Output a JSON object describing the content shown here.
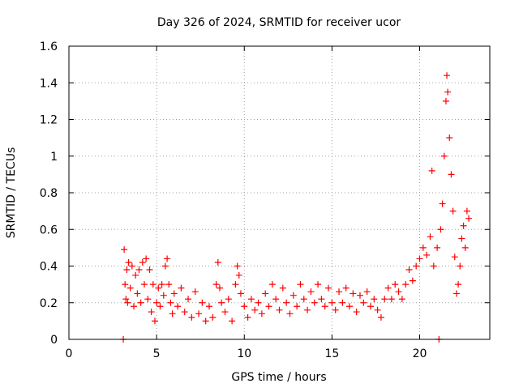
{
  "chart_data": {
    "type": "scatter",
    "title": "Day 326 of 2024, SRMTID for receiver ucor",
    "xlabel": "GPS time / hours",
    "ylabel": "SRMTID / TECUs",
    "xlim": [
      0,
      24
    ],
    "ylim": [
      0,
      1.6
    ],
    "xticks": [
      0,
      5,
      10,
      15,
      20
    ],
    "xtick_labels": [
      "0",
      "5",
      "10",
      "15",
      "20"
    ],
    "yticks": [
      0,
      0.2,
      0.4,
      0.6,
      0.8,
      1.0,
      1.2,
      1.4,
      1.6
    ],
    "ytick_labels": [
      "0",
      "0.2",
      "0.4",
      "0.6",
      "0.8",
      "1",
      "1.2",
      "1.4",
      "1.6"
    ],
    "grid": true,
    "marker": "+",
    "color": "#ff0000",
    "series": [
      {
        "name": "SRMTID",
        "points": [
          [
            3.1,
            0.0
          ],
          [
            3.15,
            0.49
          ],
          [
            3.2,
            0.3
          ],
          [
            3.25,
            0.22
          ],
          [
            3.3,
            0.38
          ],
          [
            3.35,
            0.2
          ],
          [
            3.4,
            0.42
          ],
          [
            3.5,
            0.28
          ],
          [
            3.6,
            0.4
          ],
          [
            3.7,
            0.18
          ],
          [
            3.8,
            0.35
          ],
          [
            3.9,
            0.25
          ],
          [
            4.0,
            0.38
          ],
          [
            4.1,
            0.2
          ],
          [
            4.2,
            0.42
          ],
          [
            4.3,
            0.3
          ],
          [
            4.4,
            0.44
          ],
          [
            4.5,
            0.22
          ],
          [
            4.6,
            0.38
          ],
          [
            4.7,
            0.15
          ],
          [
            4.8,
            0.3
          ],
          [
            4.9,
            0.1
          ],
          [
            5.0,
            0.2
          ],
          [
            5.1,
            0.28
          ],
          [
            5.2,
            0.18
          ],
          [
            5.3,
            0.3
          ],
          [
            5.4,
            0.24
          ],
          [
            5.5,
            0.4
          ],
          [
            5.6,
            0.44
          ],
          [
            5.7,
            0.3
          ],
          [
            5.8,
            0.2
          ],
          [
            5.9,
            0.14
          ],
          [
            6.0,
            0.25
          ],
          [
            6.2,
            0.18
          ],
          [
            6.4,
            0.28
          ],
          [
            6.6,
            0.15
          ],
          [
            6.8,
            0.22
          ],
          [
            7.0,
            0.12
          ],
          [
            7.2,
            0.26
          ],
          [
            7.4,
            0.14
          ],
          [
            7.6,
            0.2
          ],
          [
            7.8,
            0.1
          ],
          [
            8.0,
            0.18
          ],
          [
            8.2,
            0.12
          ],
          [
            8.4,
            0.3
          ],
          [
            8.5,
            0.42
          ],
          [
            8.6,
            0.28
          ],
          [
            8.7,
            0.2
          ],
          [
            8.9,
            0.15
          ],
          [
            9.1,
            0.22
          ],
          [
            9.3,
            0.1
          ],
          [
            9.5,
            0.3
          ],
          [
            9.6,
            0.4
          ],
          [
            9.7,
            0.35
          ],
          [
            9.8,
            0.25
          ],
          [
            10.0,
            0.18
          ],
          [
            10.2,
            0.12
          ],
          [
            10.4,
            0.22
          ],
          [
            10.6,
            0.16
          ],
          [
            10.8,
            0.2
          ],
          [
            11.0,
            0.14
          ],
          [
            11.2,
            0.25
          ],
          [
            11.4,
            0.18
          ],
          [
            11.6,
            0.3
          ],
          [
            11.8,
            0.22
          ],
          [
            12.0,
            0.16
          ],
          [
            12.2,
            0.28
          ],
          [
            12.4,
            0.2
          ],
          [
            12.6,
            0.14
          ],
          [
            12.8,
            0.24
          ],
          [
            13.0,
            0.18
          ],
          [
            13.2,
            0.3
          ],
          [
            13.4,
            0.22
          ],
          [
            13.6,
            0.16
          ],
          [
            13.8,
            0.26
          ],
          [
            14.0,
            0.2
          ],
          [
            14.2,
            0.3
          ],
          [
            14.4,
            0.22
          ],
          [
            14.6,
            0.18
          ],
          [
            14.8,
            0.28
          ],
          [
            15.0,
            0.2
          ],
          [
            15.2,
            0.16
          ],
          [
            15.4,
            0.26
          ],
          [
            15.6,
            0.2
          ],
          [
            15.8,
            0.28
          ],
          [
            16.0,
            0.18
          ],
          [
            16.2,
            0.25
          ],
          [
            16.4,
            0.15
          ],
          [
            16.6,
            0.24
          ],
          [
            16.8,
            0.2
          ],
          [
            17.0,
            0.26
          ],
          [
            17.2,
            0.18
          ],
          [
            17.4,
            0.22
          ],
          [
            17.6,
            0.16
          ],
          [
            17.8,
            0.12
          ],
          [
            18.0,
            0.22
          ],
          [
            18.2,
            0.28
          ],
          [
            18.4,
            0.22
          ],
          [
            18.6,
            0.3
          ],
          [
            18.8,
            0.26
          ],
          [
            19.0,
            0.22
          ],
          [
            19.2,
            0.3
          ],
          [
            19.4,
            0.38
          ],
          [
            19.6,
            0.32
          ],
          [
            19.8,
            0.4
          ],
          [
            20.0,
            0.44
          ],
          [
            20.2,
            0.5
          ],
          [
            20.4,
            0.46
          ],
          [
            20.6,
            0.56
          ],
          [
            20.7,
            0.92
          ],
          [
            20.8,
            0.4
          ],
          [
            21.0,
            0.5
          ],
          [
            21.1,
            0.0
          ],
          [
            21.2,
            0.6
          ],
          [
            21.3,
            0.74
          ],
          [
            21.4,
            1.0
          ],
          [
            21.5,
            1.3
          ],
          [
            21.55,
            1.44
          ],
          [
            21.6,
            1.35
          ],
          [
            21.7,
            1.1
          ],
          [
            21.8,
            0.9
          ],
          [
            21.9,
            0.7
          ],
          [
            22.0,
            0.45
          ],
          [
            22.1,
            0.25
          ],
          [
            22.2,
            0.3
          ],
          [
            22.3,
            0.4
          ],
          [
            22.4,
            0.55
          ],
          [
            22.5,
            0.62
          ],
          [
            22.6,
            0.5
          ],
          [
            22.7,
            0.7
          ],
          [
            22.8,
            0.66
          ]
        ]
      }
    ]
  }
}
